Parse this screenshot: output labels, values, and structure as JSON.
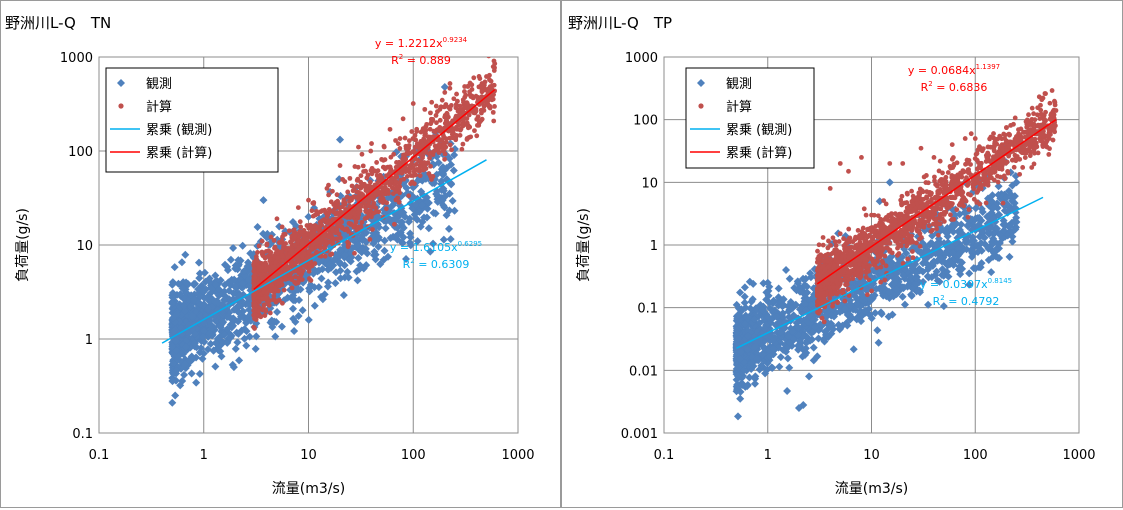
{
  "chart_data": [
    {
      "type": "scatter",
      "title": "野洲川L-Q　TN",
      "xlabel": "流量(m3/s)",
      "ylabel": "負荷量(g/s)",
      "x_scale": "log",
      "y_scale": "log",
      "xlim": [
        0.1,
        1000
      ],
      "ylim": [
        0.1,
        1000
      ],
      "x_ticks": [
        "0.1",
        "1",
        "10",
        "100",
        "1000"
      ],
      "y_ticks": [
        "0.1",
        "1",
        "10",
        "100",
        "1000"
      ],
      "grid": true,
      "legend_position": "top-left",
      "legend": [
        "観測",
        "計算",
        "累乗 (観測)",
        "累乗 (計算)"
      ],
      "colors": {
        "obs": "#4f81bd",
        "calc": "#c0504d",
        "fit_obs": "#00b0f0",
        "fit_calc": "#ff0000"
      },
      "series": [
        {
          "name": "観測",
          "marker": "diamond",
          "cloud": {
            "x_range": [
              0.5,
              250
            ],
            "a": 1.6,
            "b": 0.63,
            "spread": 0.55
          },
          "points": [
            [
              0.55,
              0.75
            ],
            [
              0.6,
              3.0
            ],
            [
              0.9,
              6.5
            ],
            [
              1.0,
              0.7
            ],
            [
              1.3,
              3.8
            ],
            [
              2.0,
              5.6
            ],
            [
              3,
              8
            ],
            [
              4,
              12
            ],
            [
              6,
              14
            ],
            [
              8,
              11
            ],
            [
              10,
              20
            ],
            [
              15,
              20
            ],
            [
              20,
              132
            ],
            [
              30,
              30
            ],
            [
              40,
              28
            ],
            [
              60,
              35
            ],
            [
              80,
              45
            ],
            [
              100,
              45
            ],
            [
              120,
              75
            ],
            [
              200,
              480
            ],
            [
              250,
              105
            ]
          ]
        },
        {
          "name": "計算",
          "marker": "circle",
          "cloud": {
            "x_range": [
              3,
              600
            ],
            "a": 1.22,
            "b": 0.92,
            "spread": 0.35
          },
          "points": [
            [
              3.2,
              3.5
            ],
            [
              4,
              10
            ],
            [
              5,
              19
            ],
            [
              6,
              13
            ],
            [
              8,
              25
            ],
            [
              10,
              30
            ],
            [
              15,
              40
            ],
            [
              20,
              70
            ],
            [
              30,
              110
            ],
            [
              40,
              120
            ],
            [
              60,
              170
            ],
            [
              80,
              220
            ],
            [
              100,
              320
            ],
            [
              150,
              330
            ],
            [
              200,
              420
            ],
            [
              300,
              350
            ],
            [
              500,
              620
            ],
            [
              600,
              850
            ]
          ]
        }
      ],
      "fits": [
        {
          "name": "累乗 (観測)",
          "a": 1.6105,
          "b": 0.6295,
          "x_range": [
            0.4,
            500
          ],
          "equation_base": "y = 1.6105x",
          "equation_exp": "0.6295",
          "r2_prefix": "R",
          "r2_value": " = 0.6309"
        },
        {
          "name": "累乗 (計算)",
          "a": 1.2212,
          "b": 0.9234,
          "x_range": [
            3,
            600
          ],
          "equation_base": "y = 1.2212x",
          "equation_exp": "0.9234",
          "r2_prefix": "R",
          "r2_value": " = 0.889"
        }
      ]
    },
    {
      "type": "scatter",
      "title": "野洲川L-Q　TP",
      "xlabel": "流量(m3/s)",
      "ylabel": "負荷量(g/s)",
      "x_scale": "log",
      "y_scale": "log",
      "xlim": [
        0.1,
        1000
      ],
      "ylim": [
        0.001,
        1000
      ],
      "x_ticks": [
        "0.1",
        "1",
        "10",
        "100",
        "1000"
      ],
      "y_ticks": [
        "0.001",
        "0.01",
        "0.1",
        "1",
        "10",
        "100",
        "1000"
      ],
      "grid": true,
      "legend_position": "top-left",
      "legend": [
        "観測",
        "計算",
        "累乗 (観測)",
        "累乗 (計算)"
      ],
      "colors": {
        "obs": "#4f81bd",
        "calc": "#c0504d",
        "fit_obs": "#00b0f0",
        "fit_calc": "#ff0000"
      },
      "series": [
        {
          "name": "観測",
          "marker": "diamond",
          "cloud": {
            "x_range": [
              0.5,
              250
            ],
            "a": 0.04,
            "b": 0.8,
            "spread": 0.7
          },
          "points": [
            [
              0.5,
              0.04
            ],
            [
              0.6,
              0.15
            ],
            [
              1,
              0.25
            ],
            [
              1.5,
              0.4
            ],
            [
              2,
              0.0025
            ],
            [
              2.2,
              0.0028
            ],
            [
              2.5,
              0.008
            ],
            [
              3,
              0.2
            ],
            [
              5,
              0.3
            ],
            [
              8,
              0.5
            ],
            [
              12,
              5
            ],
            [
              15,
              10
            ],
            [
              20,
              1.2
            ],
            [
              30,
              2
            ],
            [
              40,
              3
            ],
            [
              60,
              2.5
            ],
            [
              80,
              10
            ],
            [
              150,
              4
            ],
            [
              200,
              40
            ],
            [
              250,
              10
            ]
          ]
        },
        {
          "name": "計算",
          "marker": "circle",
          "cloud": {
            "x_range": [
              3,
              600
            ],
            "a": 0.068,
            "b": 1.14,
            "spread": 0.5
          },
          "points": [
            [
              3,
              0.27
            ],
            [
              4,
              8
            ],
            [
              5,
              20
            ],
            [
              6,
              15
            ],
            [
              8,
              25
            ],
            [
              10,
              3
            ],
            [
              15,
              20
            ],
            [
              20,
              20
            ],
            [
              30,
              35
            ],
            [
              40,
              25
            ],
            [
              60,
              40
            ],
            [
              80,
              50
            ],
            [
              100,
              50
            ],
            [
              150,
              60
            ],
            [
              200,
              75
            ],
            [
              300,
              40
            ],
            [
              500,
              80
            ],
            [
              600,
              140
            ]
          ]
        }
      ],
      "fits": [
        {
          "name": "累乗 (観測)",
          "a": 0.0397,
          "b": 0.8145,
          "x_range": [
            0.5,
            450
          ],
          "equation_base": "y = 0.0397x",
          "equation_exp": "0.8145",
          "r2_prefix": "R",
          "r2_value": " = 0.4792"
        },
        {
          "name": "累乗 (計算)",
          "a": 0.0684,
          "b": 1.1397,
          "x_range": [
            3,
            600
          ],
          "equation_base": "y = 0.0684x",
          "equation_exp": "1.1397",
          "r2_prefix": "R",
          "r2_value": " = 0.6836"
        }
      ]
    }
  ]
}
